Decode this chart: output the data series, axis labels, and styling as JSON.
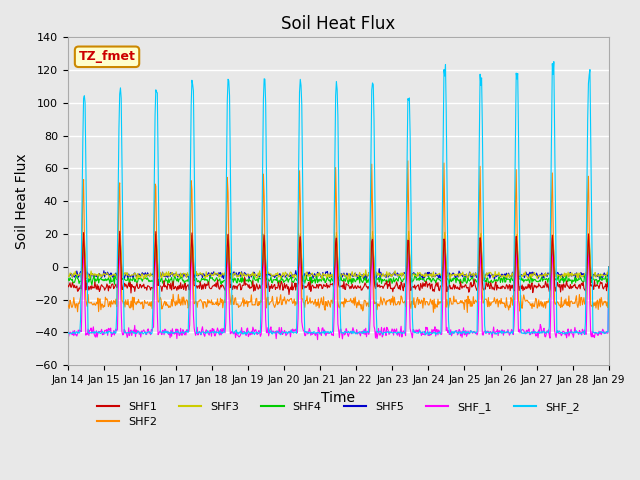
{
  "title": "Soil Heat Flux",
  "xlabel": "Time",
  "ylabel": "Soil Heat Flux",
  "xlim_days": [
    14,
    29
  ],
  "ylim": [
    -60,
    140
  ],
  "yticks": [
    -60,
    -40,
    -20,
    0,
    20,
    40,
    60,
    80,
    100,
    120,
    140
  ],
  "xtick_labels": [
    "Jan 14",
    "Jan 15",
    "Jan 16",
    "Jan 17",
    "Jan 18",
    "Jan 19",
    "Jan 20",
    "Jan 21",
    "Jan 22",
    "Jan 23",
    "Jan 24",
    "Jan 25",
    "Jan 26",
    "Jan 27",
    "Jan 28",
    "Jan 29"
  ],
  "series_colors": {
    "SHF1": "#cc0000",
    "SHF2": "#ff8800",
    "SHF3": "#cccc00",
    "SHF4": "#00cc00",
    "SHF5": "#0000cc",
    "SHF_1": "#ff00ff",
    "SHF_2": "#00ccff"
  },
  "annotation_text": "TZ_fmet",
  "annotation_color": "#cc0000",
  "annotation_bg": "#ffffcc",
  "background_color": "#e8e8e8",
  "plot_bg_color": "#e8e8e8",
  "grid_color": "#ffffff",
  "title_fontsize": 12,
  "label_fontsize": 10
}
